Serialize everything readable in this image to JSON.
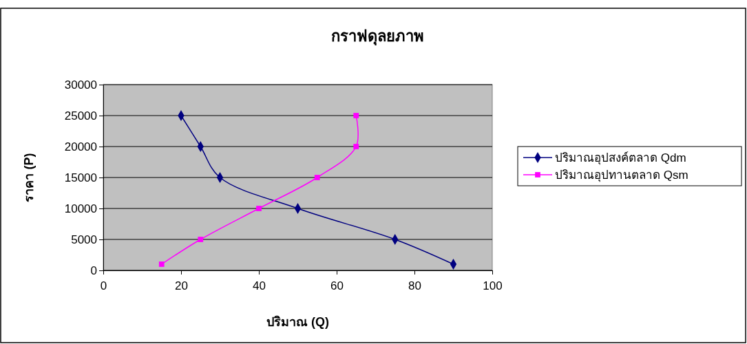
{
  "chart_data": {
    "type": "line",
    "title": "กราฟดุลยภาพ",
    "xlabel": "ปริมาณ (Q)",
    "ylabel": "ราคา (P)",
    "xlim": [
      0,
      100
    ],
    "xticks": [
      0,
      20,
      40,
      60,
      80,
      100
    ],
    "ylim": [
      0,
      30000
    ],
    "yticks": [
      0,
      5000,
      10000,
      15000,
      20000,
      25000,
      30000
    ],
    "grid": "y",
    "legend": "right",
    "series": [
      {
        "name": "ปริมาณอุปสงค์ตลาด Qdm",
        "color": "#000080",
        "marker": "diamond",
        "x": [
          20,
          25,
          30,
          50,
          75,
          90
        ],
        "values": [
          25000,
          20000,
          15000,
          10000,
          5000,
          1000
        ]
      },
      {
        "name": "ปริมาณอุปทานตลาด Qsm",
        "color": "#ff00ff",
        "marker": "square",
        "x": [
          15,
          25,
          40,
          55,
          65,
          65
        ],
        "values": [
          1000,
          5000,
          10000,
          15000,
          20000,
          25000
        ]
      }
    ]
  }
}
